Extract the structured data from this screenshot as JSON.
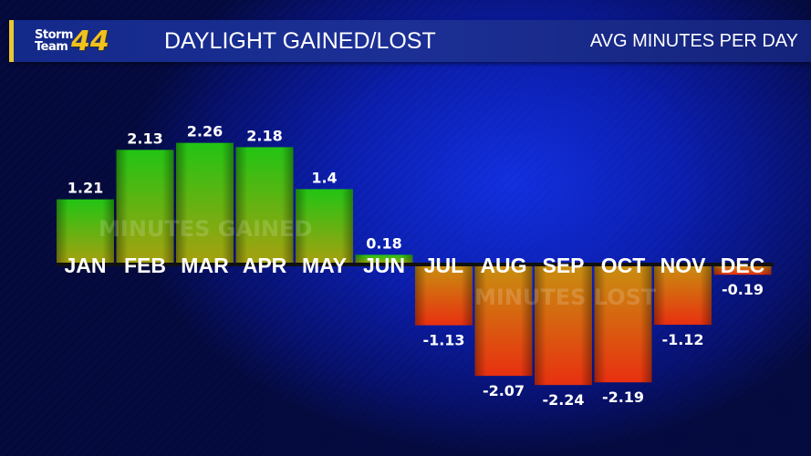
{
  "header": {
    "logo_line1": "Storm",
    "logo_line2": "Team",
    "logo_number": "44",
    "title": "DAYLIGHT GAINED/LOST",
    "subtitle": "AVG MINUTES PER DAY"
  },
  "chart_data": {
    "type": "bar",
    "title": "DAYLIGHT GAINED/LOST",
    "ylabel": "AVG MINUTES PER DAY",
    "categories": [
      "JAN",
      "FEB",
      "MAR",
      "APR",
      "MAY",
      "JUN",
      "JUL",
      "AUG",
      "SEP",
      "OCT",
      "NOV",
      "DEC"
    ],
    "values": [
      1.21,
      2.13,
      2.26,
      2.18,
      1.4,
      0.18,
      -1.13,
      -2.07,
      -2.24,
      -2.19,
      -1.12,
      -0.19
    ],
    "labels": [
      "1.21",
      "2.13",
      "2.26",
      "2.18",
      "1.4",
      "0.18",
      "-1.13",
      "-2.07",
      "-2.24",
      "-2.19",
      "-1.12",
      "-0.19"
    ],
    "annotations": [
      "MINUTES GAINED",
      "MINUTES LOST"
    ],
    "colors": {
      "gain_top": "#22c414",
      "gain_bottom": "#a8a010",
      "loss_top": "#c89010",
      "loss_bottom": "#e83010"
    },
    "grid": false
  }
}
